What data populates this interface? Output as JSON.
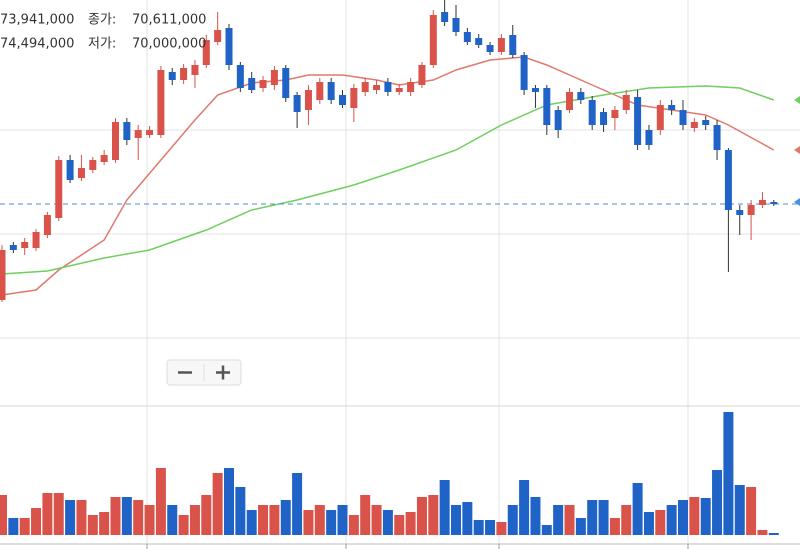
{
  "chart_data": {
    "type": "candlestick",
    "header": {
      "first_value": "73,941,000",
      "close_label": "종가:",
      "close_value": "70,611,000",
      "second_value": "74,494,000",
      "low_label": "저가:",
      "low_value": "70,000,000"
    },
    "ylim": [
      60450000,
      80700000
    ],
    "up_color": "#d9534a",
    "down_color": "#1f63c6",
    "open": [
      65700000,
      68450000,
      68300000,
      68300000,
      68950000,
      69800000,
      72700000,
      71800000,
      72200000,
      72600000,
      72700000,
      74600000,
      73800000,
      73950000,
      73950000,
      77100000,
      76700000,
      76950000,
      77450000,
      78600000,
      79300000,
      77450000,
      76800000,
      76300000,
      76450000,
      77300000,
      75950000,
      75200000,
      75700000,
      76600000,
      75950000,
      75300000,
      76100000,
      76200000,
      76600000,
      76100000,
      76100000,
      76450000,
      77450000,
      80100000,
      79800000,
      79100000,
      78800000,
      78450000,
      78100000,
      78950000,
      77950000,
      76300000,
      76300000,
      75200000,
      75200000,
      76100000,
      75700000,
      75100000,
      74800000,
      75200000,
      75850000,
      74200000,
      74200000,
      75450000,
      75200000,
      74300000,
      74700000,
      74450000,
      73200000,
      70200000,
      69950000,
      70450000,
      70600000
    ],
    "close": [
      68200000,
      68200000,
      68600000,
      69100000,
      69950000,
      72700000,
      71700000,
      72300000,
      72700000,
      72950000,
      74600000,
      73700000,
      74200000,
      74200000,
      77200000,
      76700000,
      77300000,
      77450000,
      78700000,
      79200000,
      77450000,
      76300000,
      76200000,
      76700000,
      77200000,
      75800000,
      75100000,
      76200000,
      76600000,
      75700000,
      75450000,
      76300000,
      76600000,
      76450000,
      76100000,
      76300000,
      76600000,
      77450000,
      79950000,
      79600000,
      79100000,
      78600000,
      78450000,
      78100000,
      78800000,
      77950000,
      76200000,
      76100000,
      74450000,
      74200000,
      76100000,
      75700000,
      74450000,
      74450000,
      75200000,
      75950000,
      73450000,
      73450000,
      75450000,
      75200000,
      74450000,
      74600000,
      74450000,
      73200000,
      70200000,
      69950000,
      70450000,
      70700000,
      70500000
    ],
    "high": [
      68450000,
      68600000,
      68800000,
      69250000,
      70100000,
      72900000,
      72950000,
      72950000,
      72850000,
      73200000,
      74800000,
      74800000,
      74450000,
      74400000,
      77400000,
      77300000,
      77500000,
      77700000,
      78950000,
      80100000,
      79500000,
      77600000,
      77100000,
      76900000,
      77400000,
      77450000,
      76100000,
      76450000,
      76800000,
      76800000,
      76200000,
      76500000,
      76800000,
      76700000,
      76800000,
      76500000,
      76800000,
      77600000,
      80200000,
      80700000,
      80450000,
      79300000,
      79000000,
      78600000,
      79000000,
      79450000,
      78100000,
      76450000,
      76450000,
      75400000,
      76300000,
      76300000,
      75900000,
      75300000,
      75400000,
      76200000,
      76200000,
      74450000,
      75700000,
      75700000,
      75700000,
      74800000,
      74900000,
      74700000,
      73300000,
      70450000,
      70700000,
      71100000,
      70700000
    ],
    "low": [
      65600000,
      68050000,
      67950000,
      68150000,
      68800000,
      69650000,
      71550000,
      71650000,
      72050000,
      72450000,
      72550000,
      73450000,
      72700000,
      73800000,
      73800000,
      76450000,
      76500000,
      76300000,
      77300000,
      78450000,
      77200000,
      76100000,
      76050000,
      76100000,
      76200000,
      75600000,
      74300000,
      74450000,
      75500000,
      75500000,
      75300000,
      74600000,
      75900000,
      76000000,
      75900000,
      75950000,
      75900000,
      76300000,
      77300000,
      79400000,
      78900000,
      78450000,
      78300000,
      77950000,
      77950000,
      77800000,
      75950000,
      75300000,
      73950000,
      73800000,
      75050000,
      75500000,
      74200000,
      74100000,
      74200000,
      75000000,
      73200000,
      73200000,
      73950000,
      74950000,
      74200000,
      74100000,
      74200000,
      72700000,
      67100000,
      68950000,
      68700000,
      70300000,
      70400000
    ],
    "volume": [
      40,
      17,
      17,
      27,
      42,
      42,
      35,
      35,
      20,
      23,
      38,
      38,
      35,
      30,
      67,
      30,
      20,
      30,
      40,
      62,
      67,
      48,
      25,
      30,
      30,
      35,
      62,
      25,
      30,
      25,
      30,
      20,
      40,
      30,
      25,
      20,
      23,
      38,
      40,
      55,
      30,
      33,
      15,
      15,
      13,
      30,
      55,
      38,
      10,
      30,
      30,
      17,
      35,
      35,
      17,
      30,
      52,
      23,
      25,
      30,
      35,
      38,
      37,
      65,
      123,
      50,
      48,
      5,
      2
    ],
    "vlim": [
      0,
      129
    ],
    "ma": [
      {
        "color": "#e0796b",
        "index": [
          0,
          3,
          5,
          9,
          11,
          14,
          17,
          19,
          22,
          25,
          27,
          30,
          33,
          35,
          38,
          40,
          43,
          46,
          48,
          51,
          54,
          56,
          59,
          62,
          64,
          68
        ],
        "values": [
          65950000,
          66200000,
          67200000,
          68700000,
          70700000,
          72700000,
          74700000,
          75950000,
          76550000,
          76700000,
          76950000,
          76950000,
          76700000,
          76450000,
          76700000,
          77200000,
          77700000,
          77850000,
          77450000,
          76700000,
          75950000,
          75450000,
          75200000,
          74950000,
          74450000,
          73200000
        ]
      },
      {
        "color": "#6fcf5f",
        "index": [
          0,
          4,
          9,
          13,
          18,
          22,
          26,
          31,
          35,
          40,
          44,
          48,
          53,
          57,
          62,
          65,
          68
        ],
        "values": [
          67000000,
          67150000,
          67800000,
          68200000,
          69200000,
          70200000,
          70700000,
          71450000,
          72200000,
          73200000,
          74450000,
          75450000,
          75950000,
          76300000,
          76400000,
          76300000,
          75700000
        ]
      }
    ]
  }
}
